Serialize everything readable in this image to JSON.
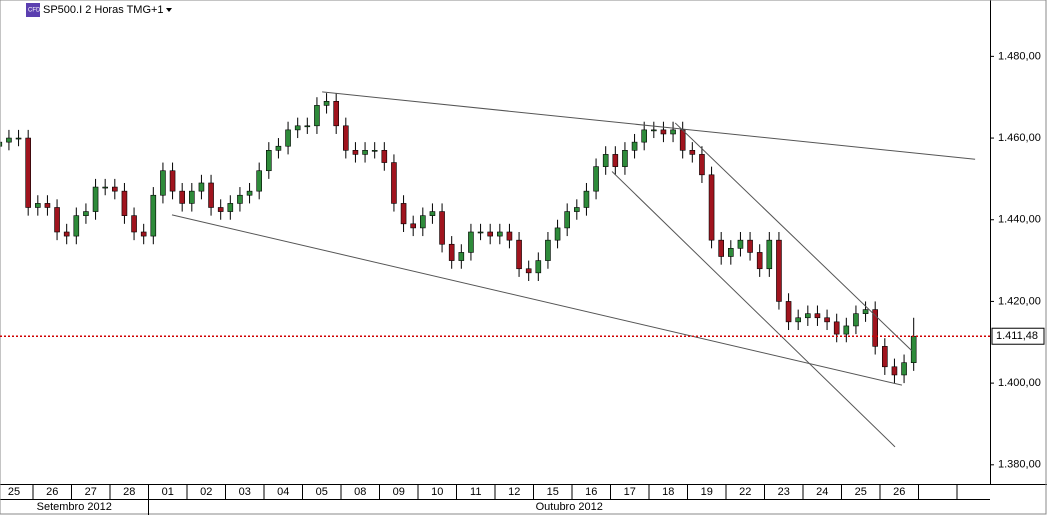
{
  "chart_data": {
    "type": "candlestick",
    "title": "SP500.I 2 Horas TMG+1",
    "categories": [
      "25",
      "26",
      "27",
      "28",
      "01",
      "02",
      "03",
      "04",
      "05",
      "08",
      "09",
      "10",
      "11",
      "12",
      "15",
      "16",
      "17",
      "18",
      "19",
      "22",
      "23",
      "24",
      "25",
      "26",
      null,
      null
    ],
    "months": [
      {
        "name": "Setembro 2012",
        "days": 4
      },
      {
        "name": "Outubro 2012",
        "days": 22
      }
    ],
    "open": [
      [
        1458,
        1459,
        1460,
        1460
      ],
      [
        1443,
        1444,
        1443,
        1437
      ],
      [
        1436,
        1441,
        1442,
        1448
      ],
      [
        1448,
        1447,
        1441,
        1437
      ],
      [
        1436,
        1446,
        1452,
        1447
      ],
      [
        1444,
        1447,
        1449,
        1443
      ],
      [
        1442,
        1444,
        1446,
        1447
      ],
      [
        1452,
        1457,
        1458,
        1462
      ],
      [
        1463,
        1463,
        1468,
        1469
      ],
      [
        1463,
        1457,
        1456,
        1457
      ],
      [
        1457,
        1454,
        1444,
        1439
      ],
      [
        1438,
        1441,
        1442,
        1434
      ],
      [
        1430,
        1432,
        1437,
        1437
      ],
      [
        1436,
        1437,
        1435,
        1428
      ],
      [
        1427,
        1430,
        1435,
        1438
      ],
      [
        1442,
        1443,
        1447,
        1453
      ],
      [
        1456,
        1453,
        1457,
        1459
      ],
      [
        1462,
        1462,
        1461,
        1462
      ],
      [
        1457,
        1456,
        1451,
        1435
      ],
      [
        1431,
        1433,
        1435,
        1432
      ],
      [
        1428,
        1435,
        1420,
        1415
      ],
      [
        1416,
        1417,
        1416,
        1415
      ],
      [
        1412,
        1414,
        1417,
        1418
      ],
      [
        1409,
        1404,
        1402,
        1405
      ]
    ],
    "high": [
      [
        1460,
        1462,
        1462,
        1462
      ],
      [
        1446,
        1446,
        1445,
        1439
      ],
      [
        1443,
        1444,
        1450,
        1450
      ],
      [
        1450,
        1449,
        1443,
        1439
      ],
      [
        1448,
        1454,
        1454,
        1449
      ],
      [
        1449,
        1451,
        1451,
        1445
      ],
      [
        1446,
        1448,
        1449,
        1454
      ],
      [
        1459,
        1460,
        1464,
        1465
      ],
      [
        1465,
        1470,
        1471,
        1471
      ],
      [
        1465,
        1459,
        1459,
        1459
      ],
      [
        1459,
        1456,
        1446,
        1441
      ],
      [
        1443,
        1444,
        1444,
        1436
      ],
      [
        1434,
        1439,
        1439,
        1439
      ],
      [
        1439,
        1439,
        1437,
        1430
      ],
      [
        1432,
        1437,
        1440,
        1444
      ],
      [
        1445,
        1449,
        1455,
        1458
      ],
      [
        1458,
        1459,
        1461,
        1464
      ],
      [
        1464,
        1464,
        1464,
        1464
      ],
      [
        1459,
        1458,
        1453,
        1437
      ],
      [
        1435,
        1437,
        1437,
        1434
      ],
      [
        1437,
        1437,
        1422,
        1418
      ],
      [
        1419,
        1419,
        1418,
        1417
      ],
      [
        1416,
        1419,
        1420,
        1420
      ],
      [
        1411,
        1406,
        1407,
        1416
      ]
    ],
    "low": [
      [
        1456,
        1457,
        1458,
        1441
      ],
      [
        1441,
        1441,
        1435,
        1434
      ],
      [
        1434,
        1439,
        1440,
        1446
      ],
      [
        1445,
        1439,
        1435,
        1434
      ],
      [
        1434,
        1444,
        1445,
        1442
      ],
      [
        1442,
        1445,
        1441,
        1440
      ],
      [
        1440,
        1442,
        1444,
        1445
      ],
      [
        1450,
        1455,
        1456,
        1460
      ],
      [
        1461,
        1461,
        1466,
        1461
      ],
      [
        1455,
        1454,
        1454,
        1455
      ],
      [
        1452,
        1442,
        1437,
        1436
      ],
      [
        1436,
        1439,
        1432,
        1428
      ],
      [
        1428,
        1430,
        1435,
        1434
      ],
      [
        1434,
        1433,
        1426,
        1425
      ],
      [
        1425,
        1428,
        1433,
        1436
      ],
      [
        1440,
        1441,
        1445,
        1451
      ],
      [
        1451,
        1451,
        1455,
        1457
      ],
      [
        1460,
        1459,
        1459,
        1455
      ],
      [
        1454,
        1449,
        1433,
        1429
      ],
      [
        1429,
        1431,
        1430,
        1426
      ],
      [
        1426,
        1418,
        1413,
        1413
      ],
      [
        1414,
        1414,
        1413,
        1410
      ],
      [
        1410,
        1412,
        1415,
        1407
      ],
      [
        1402,
        1400,
        1400,
        1403
      ]
    ],
    "close": [
      [
        1459,
        1460,
        1460,
        1443
      ],
      [
        1444,
        1443,
        1437,
        1436
      ],
      [
        1441,
        1442,
        1448,
        1448
      ],
      [
        1447,
        1441,
        1437,
        1436
      ],
      [
        1446,
        1452,
        1447,
        1444
      ],
      [
        1447,
        1449,
        1443,
        1442
      ],
      [
        1444,
        1446,
        1447,
        1452
      ],
      [
        1457,
        1458,
        1462,
        1463
      ],
      [
        1463,
        1468,
        1469,
        1463
      ],
      [
        1457,
        1456,
        1457,
        1457
      ],
      [
        1454,
        1444,
        1439,
        1438
      ],
      [
        1441,
        1442,
        1434,
        1430
      ],
      [
        1432,
        1437,
        1437,
        1436
      ],
      [
        1437,
        1435,
        1428,
        1427
      ],
      [
        1430,
        1435,
        1438,
        1442
      ],
      [
        1443,
        1447,
        1453,
        1456
      ],
      [
        1453,
        1457,
        1459,
        1462
      ],
      [
        1462,
        1461,
        1462,
        1457
      ],
      [
        1456,
        1451,
        1435,
        1431
      ],
      [
        1433,
        1435,
        1432,
        1428
      ],
      [
        1435,
        1420,
        1415,
        1416
      ],
      [
        1417,
        1416,
        1415,
        1412
      ],
      [
        1414,
        1417,
        1418,
        1409
      ],
      [
        1404,
        1402,
        1405,
        1411.48
      ]
    ],
    "up_color": "#2e8b3a",
    "down_color": "#a0141e",
    "trendline_color": "#555555",
    "trendlines": [
      {
        "x": [
          8.51,
          25.47
        ],
        "y": [
          1471.3,
          1454.8
        ]
      },
      {
        "x": [
          4.61,
          23.57
        ],
        "y": [
          1441.2,
          1399.5
        ]
      },
      {
        "x": [
          16.04,
          23.39
        ],
        "y": [
          1451.8,
          1384.4
        ]
      },
      {
        "x": [
          17.68,
          23.83
        ],
        "y": [
          1463.7,
          1407.9
        ]
      }
    ],
    "last_price": {
      "value": 1411.48,
      "label": "1.411,48",
      "color": "#d00000"
    },
    "xlim": [
      0.143,
      25.857
    ],
    "ylim": [
      1375.3,
      1493.8
    ],
    "yticks": [
      {
        "value": 1380,
        "label": "1.380,00"
      },
      {
        "value": 1400,
        "label": "1.400,00"
      },
      {
        "value": 1420,
        "label": "1.420,00"
      },
      {
        "value": 1440,
        "label": "1.440,00"
      },
      {
        "value": 1460,
        "label": "1.460,00"
      },
      {
        "value": 1480,
        "label": "1.480,00"
      }
    ]
  }
}
